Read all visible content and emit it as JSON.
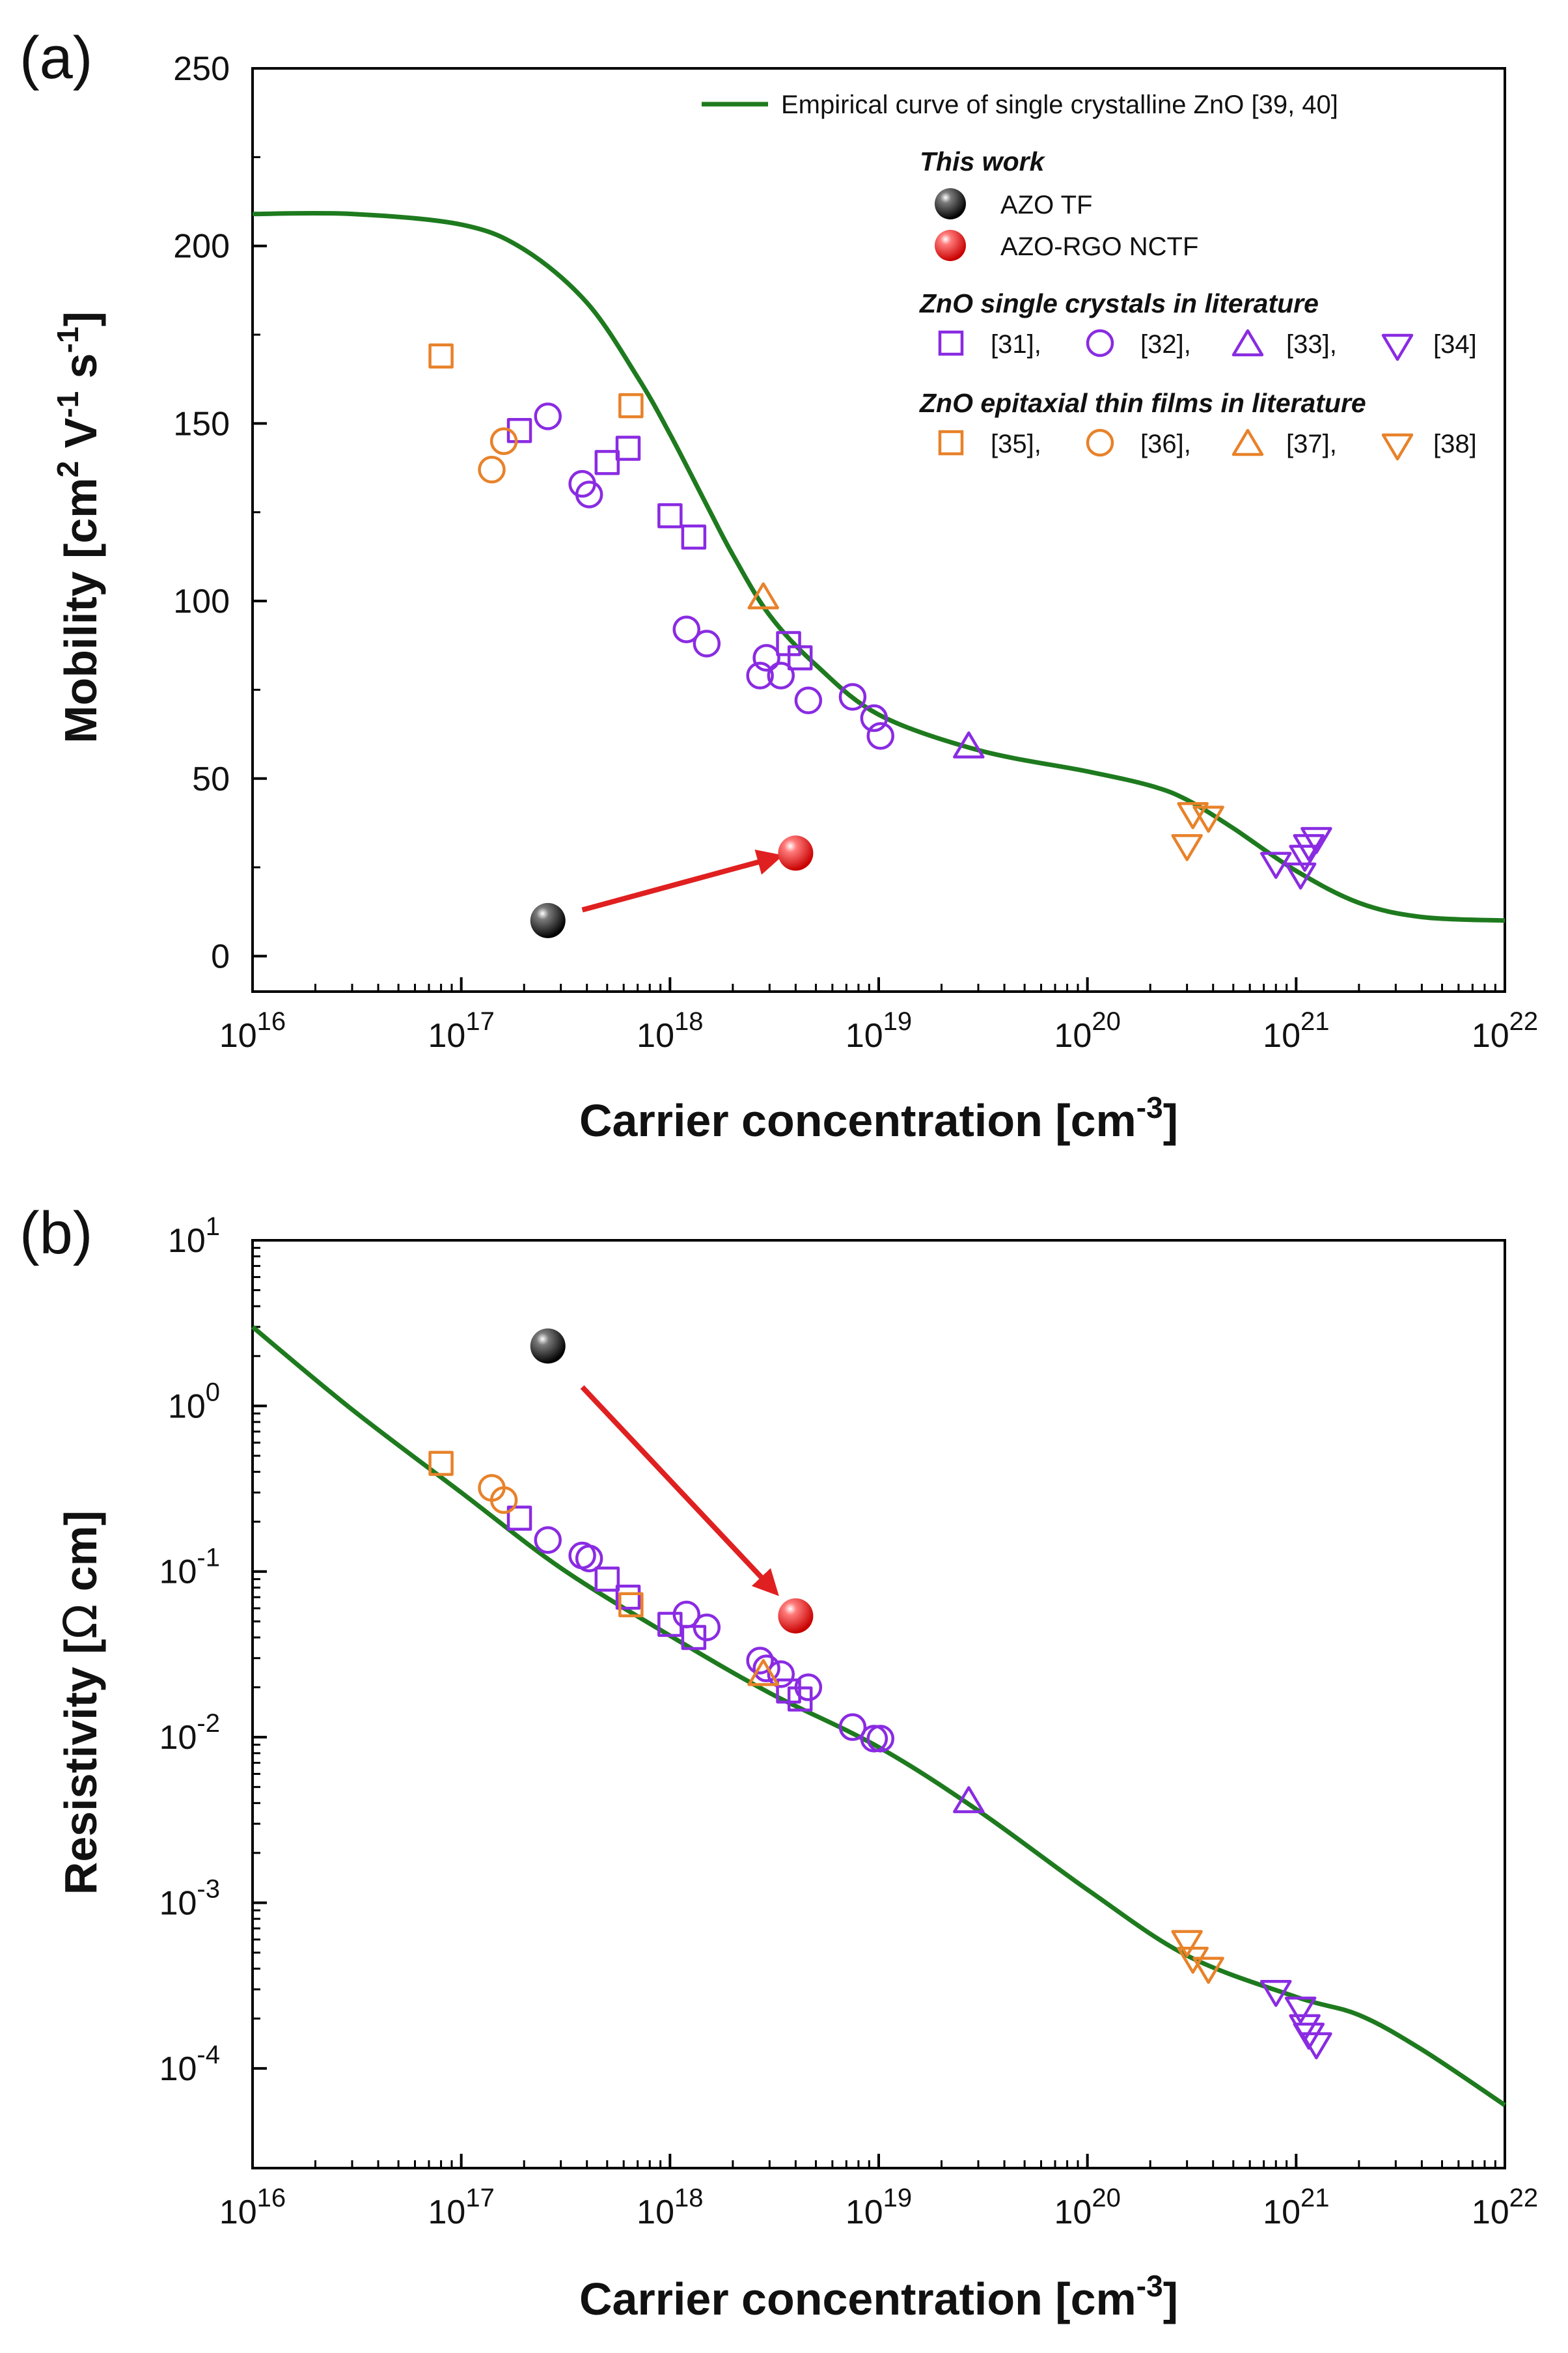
{
  "chart_data": [
    {
      "panel_label": "(a)",
      "type": "scatter",
      "title": "",
      "xlabel": "Carrier concentration [cm",
      "xlabel_sup": "-3",
      "xlabel_tail": "]",
      "ylabel": "Mobility [cm",
      "ylabel_sup1": "2",
      "ylabel_mid": " V",
      "ylabel_sup2": "-1",
      "ylabel_mid2": " s",
      "ylabel_sup3": "-1",
      "ylabel_tail": "]",
      "xscale": "log",
      "yscale": "linear",
      "xlim": [
        1e+16,
        1e+22
      ],
      "ylim": [
        -10,
        250
      ],
      "x_ticks": [
        1e+16,
        1e+17,
        1e+18,
        1e+19,
        1e+20,
        1e+21,
        1e+22
      ],
      "x_tick_labels": [
        {
          "base": "10",
          "exp": "16"
        },
        {
          "base": "10",
          "exp": "17"
        },
        {
          "base": "10",
          "exp": "18"
        },
        {
          "base": "10",
          "exp": "19"
        },
        {
          "base": "10",
          "exp": "20"
        },
        {
          "base": "10",
          "exp": "21"
        },
        {
          "base": "10",
          "exp": "22"
        }
      ],
      "y_ticks": [
        0,
        50,
        100,
        150,
        200,
        250
      ],
      "y_tick_labels": [
        "0",
        "50",
        "100",
        "150",
        "200",
        "250"
      ],
      "legend_placement": "top-right",
      "curve": {
        "name": "Empirical curve of single crystalline ZnO [39, 40]",
        "color": "#1e7a1e",
        "x": [
          1e+16,
          3e+16,
          1e+17,
          2e+17,
          4e+17,
          7e+17,
          1e+18,
          1.5e+18,
          2e+18,
          3e+18,
          5e+18,
          1e+19,
          3e+19,
          1e+20,
          2e+20,
          3e+20,
          5e+20,
          1e+21,
          2e+21,
          4e+21,
          1e+22
        ],
        "y": [
          209,
          209,
          206,
          199,
          184,
          163,
          147,
          127,
          113,
          96,
          82,
          68,
          58,
          52,
          48,
          44,
          36,
          24,
          15,
          11,
          10
        ]
      },
      "this_work": [
        {
          "name": "AZO TF",
          "x": 2.6e+17,
          "y": 10,
          "color": "#111111"
        },
        {
          "name": "AZO-RGO NCTF",
          "x": 4e+18,
          "y": 29,
          "color": "#ee1c1c"
        }
      ],
      "arrow": {
        "from": [
          3.8e+17,
          13
        ],
        "to": [
          3.3e+18,
          28
        ],
        "color": "#e02020"
      },
      "series": [
        {
          "name": "[31]",
          "group": "single",
          "marker": "square",
          "color": "#8a2be2",
          "x": [
            1.9e+17,
            5e+17,
            6.3e+17,
            1e+18,
            1.3e+18,
            3.7e+18,
            4.2e+18
          ],
          "y": [
            148,
            139,
            143,
            124,
            118,
            88,
            84
          ]
        },
        {
          "name": "[32]",
          "group": "single",
          "marker": "circle",
          "color": "#8a2be2",
          "x": [
            2.6e+17,
            3.8e+17,
            4.1e+17,
            1.2e+18,
            1.5e+18,
            2.7e+18,
            2.9e+18,
            3.4e+18,
            4.6e+18,
            7.5e+18,
            9.5e+18,
            1.02e+19
          ],
          "y": [
            152,
            133,
            130,
            92,
            88,
            79,
            84,
            79,
            72,
            73,
            67,
            62
          ]
        },
        {
          "name": "[33]",
          "group": "single",
          "marker": "triangle-up",
          "color": "#8a2be2",
          "x": [
            2.7e+19
          ],
          "y": [
            59
          ]
        },
        {
          "name": "[34]",
          "group": "single",
          "marker": "triangle-down",
          "color": "#8a2be2",
          "x": [
            8e+20,
            1.05e+21,
            1.1e+21,
            1.15e+21,
            1.25e+21
          ],
          "y": [
            26,
            23,
            28,
            31,
            33
          ]
        },
        {
          "name": "[35]",
          "group": "epitaxial",
          "marker": "square",
          "color": "#e8822a",
          "x": [
            8e+16,
            6.5e+17
          ],
          "y": [
            169,
            155
          ]
        },
        {
          "name": "[36]",
          "group": "epitaxial",
          "marker": "circle",
          "color": "#e8822a",
          "x": [
            1.4e+17,
            1.6e+17
          ],
          "y": [
            137,
            145
          ]
        },
        {
          "name": "[37]",
          "group": "epitaxial",
          "marker": "triangle-up",
          "color": "#e8822a",
          "x": [
            2.8e+18
          ],
          "y": [
            101
          ]
        },
        {
          "name": "[38]",
          "group": "epitaxial",
          "marker": "triangle-down",
          "color": "#e8822a",
          "x": [
            3e+20,
            3.2e+20,
            3.8e+20
          ],
          "y": [
            31,
            40,
            39
          ]
        }
      ],
      "legend": {
        "curve_label": "Empirical curve of single crystalline ZnO [39, 40]",
        "this_work_title": "This work",
        "single_title": "ZnO single crystals in literature",
        "epitaxial_title": "ZnO epitaxial thin films in literature",
        "single_entries": [
          "[31],",
          "[32],",
          "[33],",
          "[34]"
        ],
        "epitaxial_entries": [
          "[35],",
          "[36],",
          "[37],",
          "[38]"
        ]
      }
    },
    {
      "panel_label": "(b)",
      "type": "scatter",
      "title": "",
      "xlabel": "Carrier concentration [cm",
      "xlabel_sup": "-3",
      "xlabel_tail": "]",
      "ylabel": "Resistivity [",
      "ylabel_omega": "Ω",
      "ylabel_tail": " cm]",
      "xscale": "log",
      "yscale": "log",
      "xlim": [
        1e+16,
        1e+22
      ],
      "ylim": [
        2.5e-05,
        10
      ],
      "x_ticks": [
        1e+16,
        1e+17,
        1e+18,
        1e+19,
        1e+20,
        1e+21,
        1e+22
      ],
      "x_tick_labels": [
        {
          "base": "10",
          "exp": "16"
        },
        {
          "base": "10",
          "exp": "17"
        },
        {
          "base": "10",
          "exp": "18"
        },
        {
          "base": "10",
          "exp": "19"
        },
        {
          "base": "10",
          "exp": "20"
        },
        {
          "base": "10",
          "exp": "21"
        },
        {
          "base": "10",
          "exp": "22"
        }
      ],
      "y_ticks": [
        0.0001,
        0.001,
        0.01,
        0.1,
        1,
        10
      ],
      "y_tick_labels": [
        {
          "base": "10",
          "exp": "-4"
        },
        {
          "base": "10",
          "exp": "-3"
        },
        {
          "base": "10",
          "exp": "-2"
        },
        {
          "base": "10",
          "exp": "-1"
        },
        {
          "base": "10",
          "exp": "0"
        },
        {
          "base": "10",
          "exp": "1"
        }
      ],
      "curve": {
        "name": "Empirical curve of single crystalline ZnO [39, 40]",
        "color": "#1e7a1e",
        "x": [
          1e+16,
          3e+16,
          1e+17,
          3e+17,
          1e+18,
          3e+18,
          1e+19,
          3e+19,
          1e+20,
          3e+20,
          1e+21,
          2e+21,
          4e+21,
          1e+22
        ],
        "y": [
          3.0,
          0.95,
          0.3,
          0.105,
          0.041,
          0.0185,
          0.0087,
          0.0036,
          0.0012,
          0.00048,
          0.00027,
          0.00021,
          0.00013,
          6e-05
        ]
      },
      "this_work": [
        {
          "name": "AZO TF",
          "x": 2.6e+17,
          "y": 2.3,
          "color": "#111111"
        },
        {
          "name": "AZO-RGO NCTF",
          "x": 4e+18,
          "y": 0.054,
          "color": "#ee1c1c"
        }
      ],
      "arrow": {
        "from": [
          3.8e+17,
          1.3
        ],
        "to": [
          3.2e+18,
          0.075
        ],
        "color": "#e02020"
      },
      "series": [
        {
          "name": "[31]",
          "group": "single",
          "marker": "square",
          "color": "#8a2be2",
          "x": [
            1.9e+17,
            5e+17,
            6.3e+17,
            1e+18,
            1.3e+18,
            3.7e+18,
            4.2e+18
          ],
          "y": [
            0.21,
            0.09,
            0.07,
            0.048,
            0.04,
            0.019,
            0.017
          ]
        },
        {
          "name": "[32]",
          "group": "single",
          "marker": "circle",
          "color": "#8a2be2",
          "x": [
            2.6e+17,
            3.8e+17,
            4.1e+17,
            1.2e+18,
            1.5e+18,
            2.7e+18,
            2.9e+18,
            3.4e+18,
            4.6e+18,
            7.5e+18,
            9.5e+18,
            1.02e+19
          ],
          "y": [
            0.155,
            0.125,
            0.12,
            0.055,
            0.046,
            0.029,
            0.026,
            0.024,
            0.02,
            0.0115,
            0.0098,
            0.0098
          ]
        },
        {
          "name": "[33]",
          "group": "single",
          "marker": "triangle-up",
          "color": "#8a2be2",
          "x": [
            2.7e+19
          ],
          "y": [
            0.0041
          ]
        },
        {
          "name": "[34]",
          "group": "single",
          "marker": "triangle-down",
          "color": "#8a2be2",
          "x": [
            8e+20,
            1.05e+21,
            1.1e+21,
            1.15e+21,
            1.25e+21
          ],
          "y": [
            0.00029,
            0.00023,
            0.00018,
            0.00016,
            0.00014
          ]
        },
        {
          "name": "[35]",
          "group": "epitaxial",
          "marker": "square",
          "color": "#e8822a",
          "x": [
            8e+16,
            6.5e+17
          ],
          "y": [
            0.45,
            0.063
          ]
        },
        {
          "name": "[36]",
          "group": "epitaxial",
          "marker": "circle",
          "color": "#e8822a",
          "x": [
            1.4e+17,
            1.6e+17
          ],
          "y": [
            0.32,
            0.27
          ]
        },
        {
          "name": "[37]",
          "group": "epitaxial",
          "marker": "triangle-up",
          "color": "#e8822a",
          "x": [
            2.8e+18
          ],
          "y": [
            0.024
          ]
        },
        {
          "name": "[38]",
          "group": "epitaxial",
          "marker": "triangle-down",
          "color": "#e8822a",
          "x": [
            3e+20,
            3.2e+20,
            3.8e+20
          ],
          "y": [
            0.00058,
            0.00046,
            0.0004
          ]
        }
      ]
    }
  ]
}
